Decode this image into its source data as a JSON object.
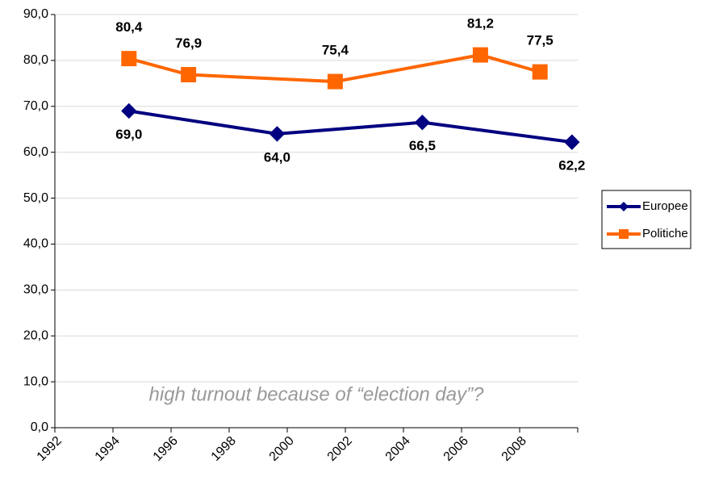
{
  "chart_data": {
    "type": "line",
    "annotation": "high turnout because of “election day”?",
    "xlim": [
      1992,
      2010
    ],
    "xticks": [
      1992,
      1994,
      1996,
      1998,
      2000,
      2002,
      2004,
      2006,
      2008
    ],
    "ylim": [
      0,
      90
    ],
    "yticks": [
      {
        "value": 0,
        "label": "0,0"
      },
      {
        "value": 10,
        "label": "10,0"
      },
      {
        "value": 20,
        "label": "20,0"
      },
      {
        "value": 30,
        "label": "30,0"
      },
      {
        "value": 40,
        "label": "40,0"
      },
      {
        "value": 50,
        "label": "50,0"
      },
      {
        "value": 60,
        "label": "60,0"
      },
      {
        "value": 70,
        "label": "70,0"
      },
      {
        "value": 80,
        "label": "80,0"
      },
      {
        "value": 90,
        "label": "90,0"
      }
    ],
    "grid": true,
    "legend": "right",
    "series": [
      {
        "name": "Europee",
        "color": "#000080",
        "marker": "diamond",
        "label_position": "below",
        "x": [
          1994.55,
          1999.65,
          2004.65,
          2009.8
        ],
        "values": [
          69.0,
          64.0,
          66.5,
          62.2
        ],
        "value_labels": [
          "69,0",
          "64,0",
          "66,5",
          "62,2"
        ]
      },
      {
        "name": "Politiche",
        "color": "#ff6600",
        "marker": "square",
        "label_position": "above",
        "x": [
          1994.55,
          1996.6,
          2001.65,
          2006.65,
          2008.7
        ],
        "values": [
          80.4,
          76.9,
          75.4,
          81.2,
          77.5
        ],
        "value_labels": [
          "80,4",
          "76,9",
          "75,4",
          "81,2",
          "77,5"
        ]
      }
    ]
  }
}
